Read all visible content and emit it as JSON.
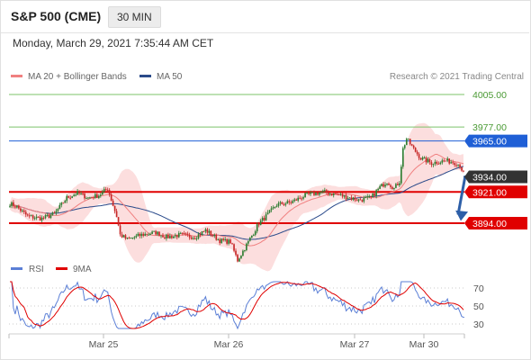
{
  "header": {
    "instrument": "S&P 500 (CME)",
    "timeframe": "30 MIN"
  },
  "datetime": "Monday, March 29, 2021 7:35:44 AM CET",
  "legend": [
    {
      "label": "MA 20 + Bollinger Bands",
      "color": "#f08080"
    },
    {
      "label": "MA 50",
      "color": "#2a4a8a"
    }
  ],
  "copyright": "Research © 2021 Trading Central",
  "colors": {
    "up": "#2e7d32",
    "down": "#c62828",
    "band": "#fbd3d3",
    "ma20": "#f08080",
    "ma50": "#2a4a8a",
    "green_level": "#7cc36a",
    "resistance": "#1f5fd6",
    "support": "#e00000",
    "last": "#333333",
    "rsi": "#5b7fd6",
    "rsi_ma": "#e00000"
  },
  "chart_data": [
    {
      "type": "candlestick",
      "y_range": [
        3863,
        4012
      ],
      "levels": [
        {
          "value": 4005,
          "label": "4005.00",
          "style": "green-line"
        },
        {
          "value": 3977,
          "label": "3977.00",
          "style": "green-line"
        },
        {
          "value": 3965,
          "label": "3965.00",
          "style": "blue-tag"
        },
        {
          "value": 3934,
          "label": "3934.00",
          "style": "last-price-tag"
        },
        {
          "value": 3921,
          "label": "3921.00",
          "style": "red-tag"
        },
        {
          "value": 3894,
          "label": "3894.00",
          "style": "red-tag"
        }
      ],
      "x_labels": [
        "Mar 25",
        "Mar 26",
        "Mar 27",
        "Mar 30"
      ],
      "close_path": [
        [
          0,
          3911
        ],
        [
          4,
          3908
        ],
        [
          10,
          3900
        ],
        [
          18,
          3898
        ],
        [
          25,
          3902
        ],
        [
          32,
          3916
        ],
        [
          38,
          3920
        ],
        [
          44,
          3916
        ],
        [
          50,
          3918
        ],
        [
          55,
          3924
        ],
        [
          60,
          3900
        ],
        [
          62,
          3884
        ],
        [
          66,
          3880
        ],
        [
          74,
          3884
        ],
        [
          82,
          3886
        ],
        [
          88,
          3882
        ],
        [
          96,
          3884
        ],
        [
          104,
          3882
        ],
        [
          110,
          3888
        ],
        [
          118,
          3879
        ],
        [
          124,
          3878
        ],
        [
          128,
          3862
        ],
        [
          134,
          3878
        ],
        [
          140,
          3894
        ],
        [
          144,
          3900
        ],
        [
          150,
          3910
        ],
        [
          158,
          3912
        ],
        [
          166,
          3918
        ],
        [
          176,
          3921
        ],
        [
          186,
          3918
        ],
        [
          196,
          3914
        ],
        [
          203,
          3916
        ],
        [
          208,
          3925
        ],
        [
          212,
          3930
        ],
        [
          216,
          3924
        ],
        [
          219,
          3930
        ],
        [
          221,
          3958
        ],
        [
          223,
          3967
        ],
        [
          227,
          3958
        ],
        [
          231,
          3950
        ],
        [
          237,
          3946
        ],
        [
          245,
          3948
        ],
        [
          251,
          3946
        ],
        [
          253,
          3944
        ],
        [
          255,
          3937
        ]
      ],
      "projection": {
        "from": [
          256,
          3935
        ],
        "to": [
          272,
          3896
        ]
      }
    },
    {
      "type": "line",
      "title": "RSI",
      "series": [
        {
          "name": "RSI",
          "color": "#5b7fd6"
        },
        {
          "name": "9MA",
          "color": "#e00000"
        }
      ],
      "y_ticks": [
        70,
        50,
        30
      ],
      "y_range": [
        24,
        78
      ]
    }
  ]
}
